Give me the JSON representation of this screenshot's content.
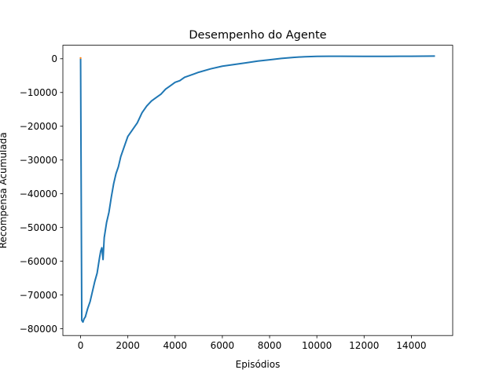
{
  "chart_data": {
    "type": "line",
    "title": "Desempenho do Agente",
    "xlabel": "Episódios",
    "ylabel": "Recompensa Acumulada",
    "xlim": [
      -750,
      15750
    ],
    "ylim": [
      -82000,
      4000
    ],
    "xticks": [
      0,
      2000,
      4000,
      6000,
      8000,
      10000,
      12000,
      14000
    ],
    "yticks": [
      0,
      -10000,
      -20000,
      -30000,
      -40000,
      -50000,
      -60000,
      -70000,
      -80000
    ],
    "grid": false,
    "series": [
      {
        "color": "#1f77b4",
        "x": [
          0,
          50,
          100,
          150,
          200,
          300,
          400,
          500,
          600,
          700,
          800,
          850,
          900,
          950,
          1000,
          1100,
          1200,
          1300,
          1400,
          1500,
          1600,
          1700,
          1800,
          1900,
          2000,
          2200,
          2400,
          2600,
          2800,
          3000,
          3200,
          3400,
          3600,
          3800,
          4000,
          4200,
          4400,
          4600,
          4800,
          5000,
          5500,
          6000,
          6500,
          7000,
          7500,
          8000,
          8500,
          9000,
          9500,
          10000,
          10500,
          11000,
          12000,
          13000,
          14000,
          15000
        ],
        "y": [
          0,
          -77500,
          -78000,
          -77000,
          -76500,
          -74000,
          -72000,
          -69000,
          -66000,
          -63500,
          -59000,
          -57000,
          -56000,
          -59500,
          -53000,
          -48500,
          -45500,
          -41000,
          -37000,
          -34000,
          -32000,
          -29000,
          -27000,
          -25000,
          -23000,
          -21000,
          -19000,
          -16000,
          -14000,
          -12500,
          -11500,
          -10500,
          -9000,
          -8000,
          -7000,
          -6500,
          -5500,
          -5000,
          -4500,
          -4000,
          -3000,
          -2200,
          -1700,
          -1200,
          -700,
          -300,
          100,
          400,
          600,
          700,
          750,
          750,
          700,
          700,
          750,
          800
        ]
      },
      {
        "color": "#ff7f0e",
        "x": [
          0
        ],
        "y": [
          200
        ]
      }
    ]
  }
}
